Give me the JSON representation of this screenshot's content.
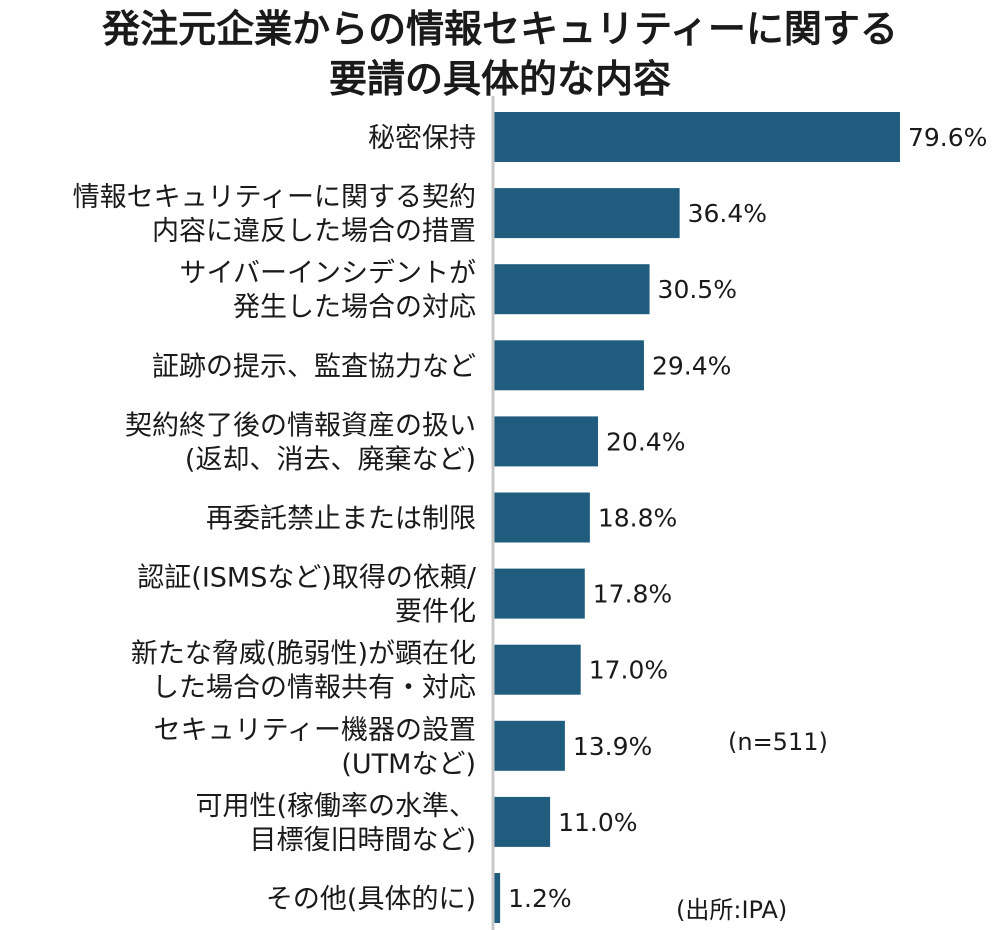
{
  "chart_data": {
    "type": "bar",
    "orientation": "horizontal",
    "title_lines": [
      "発注元企業からの情報セキュリティーに関する",
      "要請の具体的な内容"
    ],
    "categories": [
      [
        "秘密保持"
      ],
      [
        "情報セキュリティーに関する契約",
        "内容に違反した場合の措置"
      ],
      [
        "サイバーインシデントが",
        "発生した場合の対応"
      ],
      [
        "証跡の提示、監査協力など"
      ],
      [
        "契約終了後の情報資産の扱い",
        "(返却、消去、廃棄など)"
      ],
      [
        "再委託禁止または制限"
      ],
      [
        "認証(ISMSなど)取得の依頼/",
        "要件化"
      ],
      [
        "新たな脅威(脆弱性)が顕在化",
        "した場合の情報共有・対応"
      ],
      [
        "セキュリティー機器の設置",
        "(UTMなど)"
      ],
      [
        "可用性(稼働率の水準、",
        "目標復旧時間など)"
      ],
      [
        "その他(具体的に)"
      ]
    ],
    "values": [
      79.6,
      36.4,
      30.5,
      29.4,
      20.4,
      18.8,
      17.8,
      17.0,
      13.9,
      11.0,
      1.2
    ],
    "value_labels": [
      "79.6%",
      "36.4%",
      "30.5%",
      "29.4%",
      "20.4%",
      "18.8%",
      "17.8%",
      "17.0%",
      "13.9%",
      "11.0%",
      "1.2%"
    ],
    "xlim": [
      0,
      100
    ],
    "grid": false,
    "bar_color": "#1f5c7e",
    "axis_color": "#c8c8c8"
  },
  "notes": {
    "sample": "(n=511)",
    "source": "(出所:IPA)"
  }
}
